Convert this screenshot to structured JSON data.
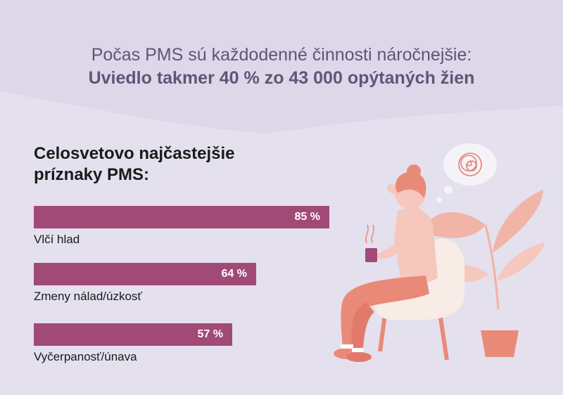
{
  "header": {
    "line1": "Počas PMS sú každodenné činnosti náročnejšie:",
    "line2": "Uviedlo takmer 40 % zo 43 000 opýtaných žien"
  },
  "colors": {
    "background": "#e4e0ee",
    "bar": "#a14a77",
    "header_text": "#5e5677",
    "illustration_primary": "#e98a78",
    "illustration_light": "#f5c7bd",
    "chair": "#f8ece6"
  },
  "icons": [
    "woman-on-chair-illustration",
    "thought-bubble-icon",
    "coffee-cup-icon",
    "potted-plant-icon"
  ],
  "chart_data": {
    "type": "bar",
    "orientation": "horizontal",
    "title": "Celosvetovo najčastejšie príznaky PMS:",
    "title_lines": [
      "Celosvetovo najčastejšie",
      "príznaky PMS:"
    ],
    "categories": [
      "Vlčí hlad",
      "Zmeny nálad/úzkosť",
      "Vyčerpanosť/únava"
    ],
    "values": [
      85,
      64,
      57
    ],
    "value_labels": [
      "85 %",
      "64 %",
      "57 %"
    ],
    "unit": "%",
    "xlim": [
      0,
      100
    ],
    "grid": false,
    "legend": "none"
  }
}
